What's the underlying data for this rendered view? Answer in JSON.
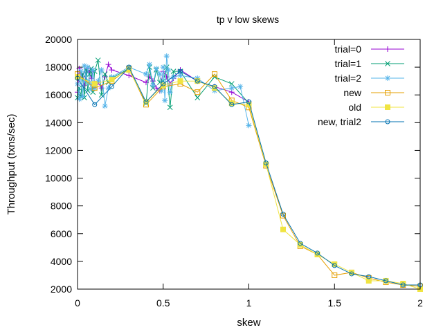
{
  "chart_data": {
    "type": "line",
    "title": "tp v low skews",
    "xlabel": "skew",
    "ylabel": "Throughput (txns/sec)",
    "xlim": [
      0,
      2
    ],
    "ylim": [
      2000,
      20000
    ],
    "xticks": [
      0,
      0.5,
      1,
      1.5,
      2
    ],
    "xtick_labels": [
      "0",
      "0.5",
      "1",
      "1.5",
      "2"
    ],
    "yticks": [
      2000,
      4000,
      6000,
      8000,
      10000,
      12000,
      14000,
      16000,
      18000,
      20000
    ],
    "ytick_labels": [
      "2000",
      "4000",
      "6000",
      "8000",
      "10000",
      "12000",
      "14000",
      "16000",
      "18000",
      "20000"
    ],
    "grid": false,
    "legend_position": "top-right",
    "series": [
      {
        "name": "trial=0",
        "color": "#9400d3",
        "marker": "plus",
        "x": [
          0,
          0.01,
          0.02,
          0.03,
          0.04,
          0.05,
          0.06,
          0.07,
          0.08,
          0.09,
          0.1,
          0.12,
          0.14,
          0.16,
          0.18,
          0.2,
          0.3,
          0.4,
          0.42,
          0.44,
          0.46,
          0.48,
          0.5,
          0.52,
          0.54,
          0.56,
          0.6,
          0.7,
          0.8,
          0.9,
          1.0
        ],
        "y": [
          16200,
          17900,
          17500,
          17300,
          16700,
          17600,
          17900,
          17600,
          17200,
          17700,
          16800,
          16900,
          16500,
          17300,
          18200,
          17800,
          17400,
          16900,
          17300,
          17000,
          16500,
          16300,
          17700,
          17300,
          16800,
          17200,
          17800,
          17000,
          16600,
          16200,
          15500
        ]
      },
      {
        "name": "trial=1",
        "color": "#009e73",
        "marker": "cross",
        "x": [
          0,
          0.01,
          0.02,
          0.03,
          0.04,
          0.05,
          0.06,
          0.07,
          0.08,
          0.09,
          0.1,
          0.12,
          0.14,
          0.16,
          0.18,
          0.2,
          0.3,
          0.4,
          0.42,
          0.44,
          0.46,
          0.48,
          0.5,
          0.52,
          0.54,
          0.56,
          0.6,
          0.7,
          0.8,
          0.9,
          1.0
        ],
        "y": [
          15800,
          16500,
          15900,
          17500,
          15800,
          17800,
          16300,
          17500,
          17900,
          16200,
          17700,
          18500,
          16000,
          17500,
          16900,
          17200,
          17900,
          15400,
          18000,
          16500,
          17800,
          16900,
          17000,
          18000,
          15100,
          17700,
          17700,
          15800,
          17300,
          16800,
          15400
        ]
      },
      {
        "name": "trial=2",
        "color": "#56b4e9",
        "marker": "star",
        "x": [
          0,
          0.01,
          0.02,
          0.03,
          0.04,
          0.05,
          0.06,
          0.07,
          0.08,
          0.09,
          0.1,
          0.12,
          0.14,
          0.16,
          0.18,
          0.2,
          0.3,
          0.4,
          0.42,
          0.44,
          0.46,
          0.48,
          0.49,
          0.5,
          0.51,
          0.52,
          0.53,
          0.54,
          0.56,
          0.6,
          0.7,
          0.8,
          0.9,
          0.95,
          1.0
        ],
        "y": [
          16800,
          15700,
          17700,
          15900,
          18100,
          17000,
          18000,
          16900,
          16400,
          17800,
          16500,
          17000,
          17800,
          15200,
          16500,
          17300,
          18000,
          17500,
          18200,
          16700,
          17900,
          17500,
          16300,
          18000,
          15600,
          18800,
          17800,
          16200,
          17300,
          17400,
          17200,
          16300,
          16500,
          16600,
          13800
        ]
      },
      {
        "name": "new",
        "color": "#e69f00",
        "marker": "square-open",
        "x": [
          0,
          0.1,
          0.2,
          0.3,
          0.4,
          0.5,
          0.6,
          0.7,
          0.8,
          0.9,
          1.0,
          1.1,
          1.2,
          1.3,
          1.4,
          1.5,
          1.6,
          1.7,
          1.8,
          1.9,
          2.0
        ],
        "y": [
          17500,
          16500,
          17000,
          17900,
          15300,
          16600,
          16800,
          16200,
          17500,
          15600,
          15100,
          10900,
          7300,
          5100,
          4500,
          3000,
          3200,
          2800,
          2500,
          2300,
          2200
        ]
      },
      {
        "name": "old",
        "color": "#f0e442",
        "marker": "square-filled",
        "x": [
          0,
          0.1,
          0.2,
          0.3,
          0.4,
          0.5,
          0.6,
          0.7,
          0.8,
          0.9,
          1.0,
          1.1,
          1.2,
          1.3,
          1.4,
          1.5,
          1.6,
          1.7,
          1.8,
          1.9,
          2.0
        ],
        "y": [
          17300,
          16800,
          17100,
          17800,
          15500,
          16700,
          17000,
          17000,
          16500,
          15400,
          15300,
          11000,
          6300,
          5200,
          4500,
          3800,
          3200,
          2600,
          2600,
          2400,
          2000
        ]
      },
      {
        "name": "new, trial2",
        "color": "#0072b2",
        "marker": "circle-open",
        "x": [
          0,
          0.1,
          0.2,
          0.3,
          0.4,
          0.5,
          0.6,
          0.7,
          0.8,
          0.9,
          1.0,
          1.1,
          1.2,
          1.3,
          1.4,
          1.5,
          1.6,
          1.7,
          1.8,
          1.9,
          2.0
        ],
        "y": [
          17200,
          15300,
          16600,
          18000,
          15500,
          16800,
          17700,
          17000,
          16600,
          15300,
          15500,
          11100,
          7400,
          5300,
          4600,
          3700,
          3100,
          2900,
          2600,
          2300,
          2300
        ]
      }
    ]
  }
}
